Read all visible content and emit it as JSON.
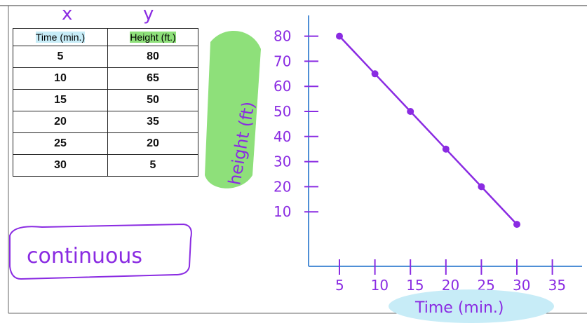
{
  "table": {
    "header_x_mark": "x",
    "header_y_mark": "y",
    "columns": [
      "Time (min.)",
      "Height (ft.)"
    ],
    "rows": [
      {
        "time": "5",
        "height": "80"
      },
      {
        "time": "10",
        "height": "65"
      },
      {
        "time": "15",
        "height": "50"
      },
      {
        "time": "20",
        "height": "35"
      },
      {
        "time": "25",
        "height": "20"
      },
      {
        "time": "30",
        "height": "5"
      }
    ]
  },
  "note": "continuous",
  "chart_data": {
    "type": "line",
    "xlabel": "Time (min.)",
    "ylabel": "height (ft)",
    "x_ticks": [
      "5",
      "10",
      "15",
      "20",
      "25",
      "30",
      "35"
    ],
    "y_ticks": [
      "10",
      "20",
      "30",
      "40",
      "50",
      "60",
      "70",
      "80"
    ],
    "xlim": [
      5,
      35
    ],
    "ylim": [
      0,
      80
    ],
    "points": [
      {
        "x": 5,
        "y": 80
      },
      {
        "x": 10,
        "y": 65
      },
      {
        "x": 15,
        "y": 50
      },
      {
        "x": 20,
        "y": 35
      },
      {
        "x": 25,
        "y": 20
      },
      {
        "x": 30,
        "y": 5
      }
    ],
    "colors": {
      "axis": "#4f8fd6",
      "ink": "#8a2be2",
      "highlight_green": "#8ee07a",
      "highlight_blue": "#c7ecf7"
    }
  }
}
